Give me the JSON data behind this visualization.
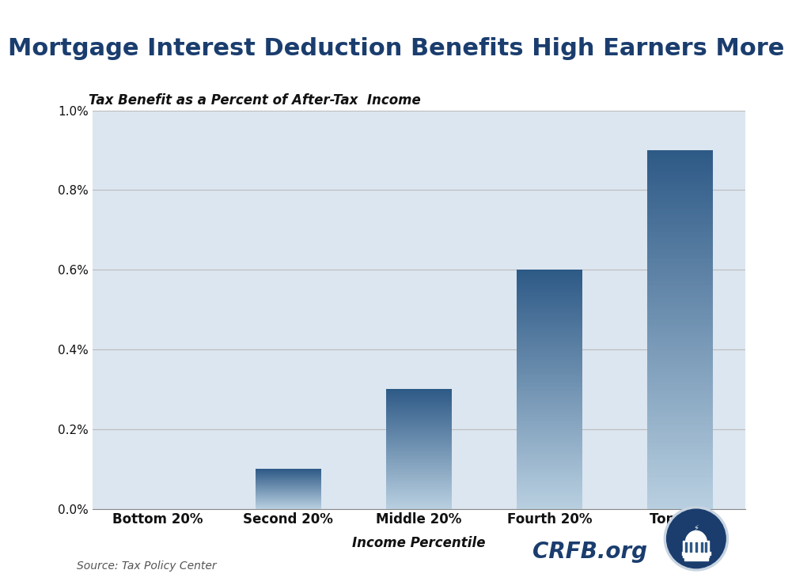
{
  "title": "Mortgage Interest Deduction Benefits High Earners More",
  "subtitle": "Tax Benefit as a Percent of After-Tax  Income",
  "xlabel": "Income Percentile",
  "categories": [
    "Bottom 20%",
    "Second 20%",
    "Middle 20%",
    "Fourth 20%",
    "Top 20%"
  ],
  "values": [
    0.0,
    0.001,
    0.003,
    0.006,
    0.009
  ],
  "ylim": [
    0,
    0.01
  ],
  "yticks": [
    0.0,
    0.002,
    0.004,
    0.006,
    0.008,
    0.01
  ],
  "ytick_labels": [
    "0.0%",
    "0.2%",
    "0.4%",
    "0.6%",
    "0.8%",
    "1.0%"
  ],
  "title_color": "#1a3d6e",
  "title_fontsize": 22,
  "subtitle_fontsize": 12,
  "source_text": "Source: Tax Policy Center",
  "crfb_text": "CRFB.org",
  "header_bg": "#ffffff",
  "body_bg": "#dce6f0",
  "bar_color_top": "#2d5986",
  "bar_color_bottom": "#b8cfe0",
  "grid_color": "#bbbbbb",
  "bar_width": 0.5
}
